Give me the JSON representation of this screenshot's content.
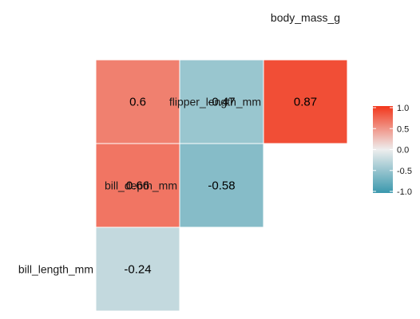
{
  "chart_data": {
    "type": "heatmap",
    "variables": [
      "bill_length_mm",
      "bill_depth_mm",
      "flipper_length_mm",
      "body_mass_g"
    ],
    "cells": [
      {
        "row": "bill_depth_mm",
        "col": "bill_length_mm",
        "value": -0.24,
        "label": "-0.24"
      },
      {
        "row": "flipper_length_mm",
        "col": "bill_length_mm",
        "value": 0.66,
        "label": "0.66"
      },
      {
        "row": "flipper_length_mm",
        "col": "bill_depth_mm",
        "value": -0.58,
        "label": "-0.58"
      },
      {
        "row": "body_mass_g",
        "col": "bill_length_mm",
        "value": 0.6,
        "label": "0.6"
      },
      {
        "row": "body_mass_g",
        "col": "bill_depth_mm",
        "value": -0.47,
        "label": "-0.47"
      },
      {
        "row": "body_mass_g",
        "col": "flipper_length_mm",
        "value": 0.87,
        "label": "0.87"
      }
    ],
    "color_scale": {
      "low": "#3a98ad",
      "mid": "#eeeeee",
      "high": "#f2361b",
      "limits": [
        -1,
        1
      ]
    },
    "legend": {
      "ticks": [
        "1.0",
        "0.5",
        "0.0",
        "-0.5",
        "-1.0"
      ],
      "position": "right"
    },
    "title": "",
    "xlabel": "",
    "ylabel": ""
  }
}
